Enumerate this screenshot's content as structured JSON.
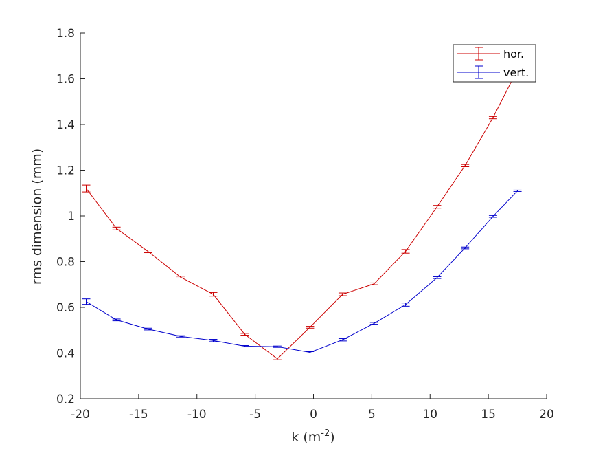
{
  "chart_data": {
    "type": "line",
    "xlabel": "k (m",
    "xlabel_sup": "-2",
    "xlabel_end": ")",
    "ylabel": "rms dimension (mm)",
    "xlim": [
      -20,
      20
    ],
    "ylim": [
      0.2,
      1.8
    ],
    "xticks": [
      -20,
      -15,
      -10,
      -5,
      0,
      5,
      10,
      15,
      20
    ],
    "yticks": [
      0.2,
      0.4,
      0.6,
      0.8,
      1,
      1.2,
      1.4,
      1.6,
      1.8
    ],
    "xtick_labels": [
      "-20",
      "-15",
      "-10",
      "-5",
      "0",
      "5",
      "10",
      "15",
      "20"
    ],
    "ytick_labels": [
      "0.2",
      "0.4",
      "0.6",
      "0.8",
      "1",
      "1.2",
      "1.4",
      "1.6",
      "1.8"
    ],
    "grid": false,
    "legend_position": "top-right",
    "series": [
      {
        "name": "hor.",
        "color": "#cc0000",
        "points": [
          {
            "x": -19.5,
            "y": 1.12,
            "err": 0.015
          },
          {
            "x": -16.9,
            "y": 0.945,
            "err": 0.006
          },
          {
            "x": -14.2,
            "y": 0.845,
            "err": 0.006
          },
          {
            "x": -11.4,
            "y": 0.732,
            "err": 0.004
          },
          {
            "x": -8.6,
            "y": 0.657,
            "err": 0.008
          },
          {
            "x": -5.9,
            "y": 0.482,
            "err": 0.004
          },
          {
            "x": -3.1,
            "y": 0.375,
            "err": 0.004
          },
          {
            "x": -0.3,
            "y": 0.513,
            "err": 0.004
          },
          {
            "x": 2.5,
            "y": 0.657,
            "err": 0.006
          },
          {
            "x": 5.2,
            "y": 0.703,
            "err": 0.004
          },
          {
            "x": 7.9,
            "y": 0.845,
            "err": 0.008
          },
          {
            "x": 10.6,
            "y": 1.04,
            "err": 0.006
          },
          {
            "x": 13.0,
            "y": 1.22,
            "err": 0.005
          },
          {
            "x": 15.4,
            "y": 1.43,
            "err": 0.005
          },
          {
            "x": 17.2,
            "y": 1.61,
            "err": 0.005
          }
        ]
      },
      {
        "name": "vert.",
        "color": "#0000cc",
        "points": [
          {
            "x": -19.5,
            "y": 0.625,
            "err": 0.012
          },
          {
            "x": -16.9,
            "y": 0.545,
            "err": 0.004
          },
          {
            "x": -14.2,
            "y": 0.505,
            "err": 0.004
          },
          {
            "x": -11.4,
            "y": 0.473,
            "err": 0.003
          },
          {
            "x": -8.6,
            "y": 0.455,
            "err": 0.005
          },
          {
            "x": -5.9,
            "y": 0.43,
            "err": 0.003
          },
          {
            "x": -3.1,
            "y": 0.428,
            "err": 0.003
          },
          {
            "x": -0.3,
            "y": 0.403,
            "err": 0.003
          },
          {
            "x": 2.5,
            "y": 0.458,
            "err": 0.005
          },
          {
            "x": 5.2,
            "y": 0.53,
            "err": 0.004
          },
          {
            "x": 7.9,
            "y": 0.612,
            "err": 0.007
          },
          {
            "x": 10.6,
            "y": 0.73,
            "err": 0.004
          },
          {
            "x": 13.0,
            "y": 0.86,
            "err": 0.004
          },
          {
            "x": 15.4,
            "y": 0.998,
            "err": 0.004
          },
          {
            "x": 17.5,
            "y": 1.11,
            "err": 0.003
          }
        ]
      }
    ]
  }
}
